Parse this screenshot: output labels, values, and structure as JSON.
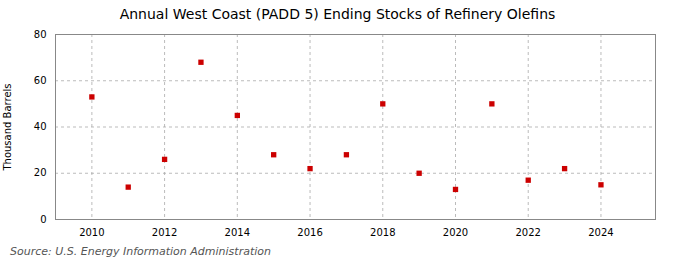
{
  "chart_data": {
    "type": "scatter",
    "title": "Annual West Coast (PADD 5) Ending Stocks of Refinery Olefins",
    "ylabel": "Thousand Barrels",
    "source": "Source: U.S. Energy Information Administration",
    "x": [
      2010,
      2011,
      2012,
      2013,
      2014,
      2015,
      2016,
      2017,
      2018,
      2019,
      2020,
      2021,
      2022,
      2023,
      2024
    ],
    "values": [
      53,
      14,
      26,
      68,
      45,
      28,
      22,
      28,
      50,
      20,
      13,
      50,
      17,
      22,
      15
    ],
    "color": "#cc0000",
    "marker": "square",
    "xlim": [
      2009.0,
      2025.5
    ],
    "xticks": [
      2010,
      2012,
      2014,
      2016,
      2018,
      2020,
      2022,
      2024
    ],
    "ylim": [
      0,
      80
    ],
    "yticks": [
      0,
      20,
      40,
      60,
      80
    ],
    "grid": true
  }
}
